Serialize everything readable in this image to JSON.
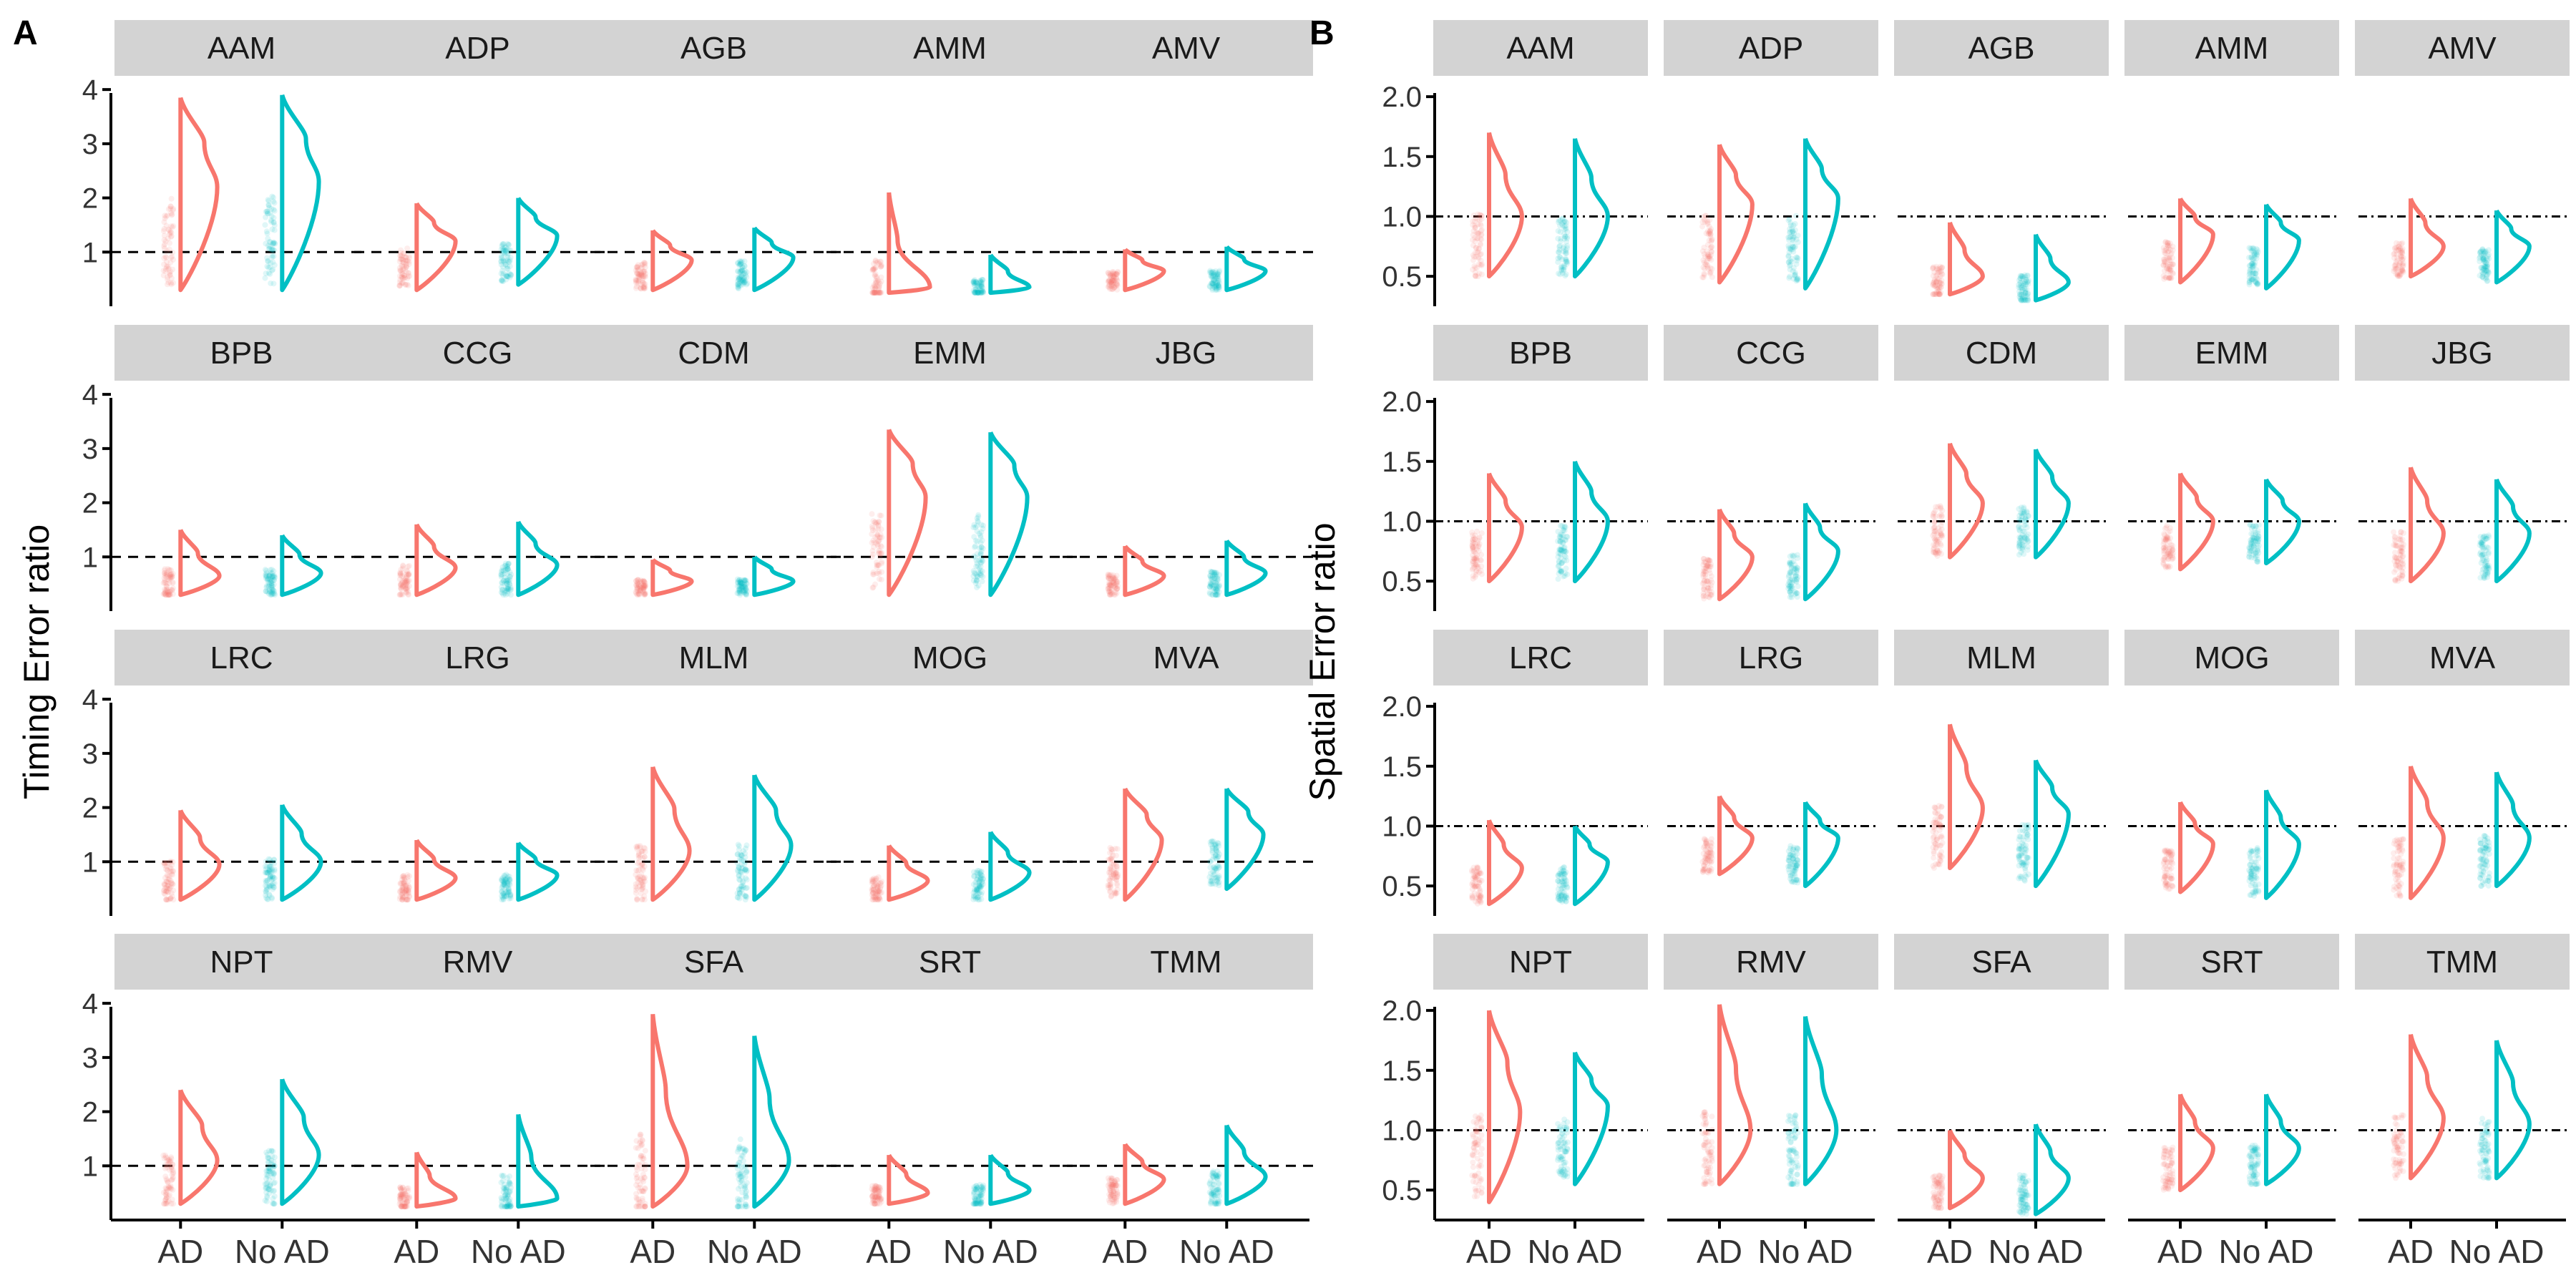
{
  "colors": {
    "ad": "#F8766D",
    "no_ad": "#00BFC4",
    "strip_bg": "#D3D3D3",
    "axis": "#000000"
  },
  "chart_data": [
    {
      "type": "violin",
      "panel_label": "A",
      "ylabel": "Timing Error ratio",
      "ylim": [
        0,
        4.2
      ],
      "yticks": [
        "1",
        "2",
        "3",
        "4"
      ],
      "ytick_values": [
        1,
        2,
        3,
        4
      ],
      "reference_line": 1,
      "x_categories": [
        "AD",
        "No AD"
      ],
      "facets": [
        {
          "name": "AAM",
          "series": [
            {
              "min": 0.3,
              "max": 3.85,
              "peak_y": 2.2,
              "peak_w": 0.85,
              "mid_w": 0.55
            },
            {
              "min": 0.3,
              "max": 3.9,
              "peak_y": 2.3,
              "peak_w": 0.85,
              "mid_w": 0.55
            }
          ]
        },
        {
          "name": "ADP",
          "series": [
            {
              "min": 0.3,
              "max": 1.9,
              "peak_y": 1.2,
              "peak_w": 0.9,
              "mid_w": 0.4
            },
            {
              "min": 0.4,
              "max": 2.0,
              "peak_y": 1.3,
              "peak_w": 0.9,
              "mid_w": 0.4
            }
          ]
        },
        {
          "name": "AGB",
          "series": [
            {
              "min": 0.3,
              "max": 1.4,
              "peak_y": 0.85,
              "peak_w": 0.9,
              "mid_w": 0.4
            },
            {
              "min": 0.3,
              "max": 1.45,
              "peak_y": 0.9,
              "peak_w": 0.9,
              "mid_w": 0.4
            }
          ]
        },
        {
          "name": "AMM",
          "series": [
            {
              "min": 0.25,
              "max": 2.1,
              "peak_y": 0.35,
              "peak_w": 0.95,
              "mid_w": 0.2
            },
            {
              "min": 0.25,
              "max": 0.95,
              "peak_y": 0.35,
              "peak_w": 0.9,
              "mid_w": 0.4
            }
          ]
        },
        {
          "name": "AMV",
          "series": [
            {
              "min": 0.3,
              "max": 1.05,
              "peak_y": 0.65,
              "peak_w": 0.9,
              "mid_w": 0.4
            },
            {
              "min": 0.3,
              "max": 1.1,
              "peak_y": 0.65,
              "peak_w": 0.9,
              "mid_w": 0.4
            }
          ]
        },
        {
          "name": "BPB",
          "series": [
            {
              "min": 0.3,
              "max": 1.5,
              "peak_y": 0.65,
              "peak_w": 0.9,
              "mid_w": 0.4
            },
            {
              "min": 0.3,
              "max": 1.4,
              "peak_y": 0.7,
              "peak_w": 0.9,
              "mid_w": 0.4
            }
          ]
        },
        {
          "name": "CCG",
          "series": [
            {
              "min": 0.3,
              "max": 1.6,
              "peak_y": 0.8,
              "peak_w": 0.9,
              "mid_w": 0.4
            },
            {
              "min": 0.3,
              "max": 1.65,
              "peak_y": 0.85,
              "peak_w": 0.9,
              "mid_w": 0.4
            }
          ]
        },
        {
          "name": "CDM",
          "series": [
            {
              "min": 0.3,
              "max": 0.95,
              "peak_y": 0.55,
              "peak_w": 0.9,
              "mid_w": 0.4
            },
            {
              "min": 0.3,
              "max": 1.0,
              "peak_y": 0.55,
              "peak_w": 0.9,
              "mid_w": 0.4
            }
          ]
        },
        {
          "name": "EMM",
          "series": [
            {
              "min": 0.3,
              "max": 3.35,
              "peak_y": 2.1,
              "peak_w": 0.85,
              "mid_w": 0.55
            },
            {
              "min": 0.3,
              "max": 3.3,
              "peak_y": 2.1,
              "peak_w": 0.85,
              "mid_w": 0.55
            }
          ]
        },
        {
          "name": "JBG",
          "series": [
            {
              "min": 0.3,
              "max": 1.2,
              "peak_y": 0.65,
              "peak_w": 0.9,
              "mid_w": 0.4
            },
            {
              "min": 0.3,
              "max": 1.3,
              "peak_y": 0.7,
              "peak_w": 0.9,
              "mid_w": 0.4
            }
          ]
        },
        {
          "name": "LRC",
          "series": [
            {
              "min": 0.3,
              "max": 1.95,
              "peak_y": 0.95,
              "peak_w": 0.9,
              "mid_w": 0.45
            },
            {
              "min": 0.3,
              "max": 2.05,
              "peak_y": 1.0,
              "peak_w": 0.9,
              "mid_w": 0.45
            }
          ]
        },
        {
          "name": "LRG",
          "series": [
            {
              "min": 0.3,
              "max": 1.4,
              "peak_y": 0.7,
              "peak_w": 0.9,
              "mid_w": 0.4
            },
            {
              "min": 0.3,
              "max": 1.35,
              "peak_y": 0.75,
              "peak_w": 0.9,
              "mid_w": 0.4
            }
          ]
        },
        {
          "name": "MLM",
          "series": [
            {
              "min": 0.3,
              "max": 2.75,
              "peak_y": 1.2,
              "peak_w": 0.85,
              "mid_w": 0.5
            },
            {
              "min": 0.3,
              "max": 2.6,
              "peak_y": 1.3,
              "peak_w": 0.85,
              "mid_w": 0.5
            }
          ]
        },
        {
          "name": "MOG",
          "series": [
            {
              "min": 0.3,
              "max": 1.3,
              "peak_y": 0.65,
              "peak_w": 0.9,
              "mid_w": 0.4
            },
            {
              "min": 0.3,
              "max": 1.55,
              "peak_y": 0.8,
              "peak_w": 0.9,
              "mid_w": 0.4
            }
          ]
        },
        {
          "name": "MVA",
          "series": [
            {
              "min": 0.3,
              "max": 2.35,
              "peak_y": 1.4,
              "peak_w": 0.85,
              "mid_w": 0.5
            },
            {
              "min": 0.5,
              "max": 2.35,
              "peak_y": 1.5,
              "peak_w": 0.85,
              "mid_w": 0.5
            }
          ]
        },
        {
          "name": "NPT",
          "series": [
            {
              "min": 0.3,
              "max": 2.4,
              "peak_y": 1.1,
              "peak_w": 0.85,
              "mid_w": 0.5
            },
            {
              "min": 0.3,
              "max": 2.6,
              "peak_y": 1.2,
              "peak_w": 0.85,
              "mid_w": 0.5
            }
          ]
        },
        {
          "name": "RMV",
          "series": [
            {
              "min": 0.25,
              "max": 1.25,
              "peak_y": 0.4,
              "peak_w": 0.9,
              "mid_w": 0.3
            },
            {
              "min": 0.25,
              "max": 1.95,
              "peak_y": 0.4,
              "peak_w": 0.9,
              "mid_w": 0.3
            }
          ]
        },
        {
          "name": "SFA",
          "series": [
            {
              "min": 0.25,
              "max": 3.8,
              "peak_y": 1.0,
              "peak_w": 0.8,
              "mid_w": 0.3
            },
            {
              "min": 0.25,
              "max": 3.4,
              "peak_y": 1.1,
              "peak_w": 0.8,
              "mid_w": 0.35
            }
          ]
        },
        {
          "name": "SRT",
          "series": [
            {
              "min": 0.3,
              "max": 1.2,
              "peak_y": 0.5,
              "peak_w": 0.9,
              "mid_w": 0.4
            },
            {
              "min": 0.3,
              "max": 1.2,
              "peak_y": 0.55,
              "peak_w": 0.9,
              "mid_w": 0.4
            }
          ]
        },
        {
          "name": "TMM",
          "series": [
            {
              "min": 0.3,
              "max": 1.4,
              "peak_y": 0.75,
              "peak_w": 0.9,
              "mid_w": 0.4
            },
            {
              "min": 0.3,
              "max": 1.75,
              "peak_y": 0.8,
              "peak_w": 0.9,
              "mid_w": 0.4
            }
          ]
        }
      ]
    },
    {
      "type": "violin",
      "panel_label": "B",
      "ylabel": "Spatial Error ratio",
      "ylim": [
        0.25,
        2.15
      ],
      "yticks": [
        "0.5",
        "1.0",
        "1.5",
        "2.0"
      ],
      "ytick_values": [
        0.5,
        1.0,
        1.5,
        2.0
      ],
      "reference_line": 1,
      "x_categories": [
        "AD",
        "No AD"
      ],
      "facets": [
        {
          "name": "AAM",
          "series": [
            {
              "min": 0.5,
              "max": 1.7,
              "peak_y": 1.0,
              "peak_w": 0.9,
              "mid_w": 0.45
            },
            {
              "min": 0.5,
              "max": 1.65,
              "peak_y": 1.0,
              "peak_w": 0.9,
              "mid_w": 0.45
            }
          ]
        },
        {
          "name": "ADP",
          "series": [
            {
              "min": 0.45,
              "max": 1.6,
              "peak_y": 1.1,
              "peak_w": 0.9,
              "mid_w": 0.45
            },
            {
              "min": 0.4,
              "max": 1.65,
              "peak_y": 1.15,
              "peak_w": 0.9,
              "mid_w": 0.45
            }
          ]
        },
        {
          "name": "AGB",
          "series": [
            {
              "min": 0.35,
              "max": 0.95,
              "peak_y": 0.5,
              "peak_w": 0.9,
              "mid_w": 0.4
            },
            {
              "min": 0.3,
              "max": 0.85,
              "peak_y": 0.45,
              "peak_w": 0.9,
              "mid_w": 0.4
            }
          ]
        },
        {
          "name": "AMM",
          "series": [
            {
              "min": 0.45,
              "max": 1.15,
              "peak_y": 0.85,
              "peak_w": 0.9,
              "mid_w": 0.4
            },
            {
              "min": 0.4,
              "max": 1.1,
              "peak_y": 0.8,
              "peak_w": 0.9,
              "mid_w": 0.4
            }
          ]
        },
        {
          "name": "AMV",
          "series": [
            {
              "min": 0.5,
              "max": 1.15,
              "peak_y": 0.75,
              "peak_w": 0.9,
              "mid_w": 0.4
            },
            {
              "min": 0.45,
              "max": 1.05,
              "peak_y": 0.75,
              "peak_w": 0.9,
              "mid_w": 0.4
            }
          ]
        },
        {
          "name": "BPB",
          "series": [
            {
              "min": 0.5,
              "max": 1.4,
              "peak_y": 0.95,
              "peak_w": 0.9,
              "mid_w": 0.45
            },
            {
              "min": 0.5,
              "max": 1.5,
              "peak_y": 1.0,
              "peak_w": 0.9,
              "mid_w": 0.45
            }
          ]
        },
        {
          "name": "CCG",
          "series": [
            {
              "min": 0.35,
              "max": 1.1,
              "peak_y": 0.7,
              "peak_w": 0.9,
              "mid_w": 0.4
            },
            {
              "min": 0.35,
              "max": 1.15,
              "peak_y": 0.75,
              "peak_w": 0.9,
              "mid_w": 0.4
            }
          ]
        },
        {
          "name": "CDM",
          "series": [
            {
              "min": 0.7,
              "max": 1.65,
              "peak_y": 1.15,
              "peak_w": 0.9,
              "mid_w": 0.45
            },
            {
              "min": 0.7,
              "max": 1.6,
              "peak_y": 1.15,
              "peak_w": 0.9,
              "mid_w": 0.45
            }
          ]
        },
        {
          "name": "EMM",
          "series": [
            {
              "min": 0.6,
              "max": 1.4,
              "peak_y": 1.0,
              "peak_w": 0.9,
              "mid_w": 0.45
            },
            {
              "min": 0.65,
              "max": 1.35,
              "peak_y": 1.0,
              "peak_w": 0.9,
              "mid_w": 0.45
            }
          ]
        },
        {
          "name": "JBG",
          "series": [
            {
              "min": 0.5,
              "max": 1.45,
              "peak_y": 0.9,
              "peak_w": 0.9,
              "mid_w": 0.45
            },
            {
              "min": 0.5,
              "max": 1.35,
              "peak_y": 0.9,
              "peak_w": 0.9,
              "mid_w": 0.45
            }
          ]
        },
        {
          "name": "LRC",
          "series": [
            {
              "min": 0.35,
              "max": 1.05,
              "peak_y": 0.65,
              "peak_w": 0.9,
              "mid_w": 0.4
            },
            {
              "min": 0.35,
              "max": 1.0,
              "peak_y": 0.7,
              "peak_w": 0.9,
              "mid_w": 0.4
            }
          ]
        },
        {
          "name": "LRG",
          "series": [
            {
              "min": 0.6,
              "max": 1.25,
              "peak_y": 0.9,
              "peak_w": 0.9,
              "mid_w": 0.4
            },
            {
              "min": 0.5,
              "max": 1.2,
              "peak_y": 0.9,
              "peak_w": 0.9,
              "mid_w": 0.4
            }
          ]
        },
        {
          "name": "MLM",
          "series": [
            {
              "min": 0.65,
              "max": 1.85,
              "peak_y": 1.15,
              "peak_w": 0.9,
              "mid_w": 0.45
            },
            {
              "min": 0.5,
              "max": 1.55,
              "peak_y": 1.1,
              "peak_w": 0.9,
              "mid_w": 0.45
            }
          ]
        },
        {
          "name": "MOG",
          "series": [
            {
              "min": 0.45,
              "max": 1.2,
              "peak_y": 0.85,
              "peak_w": 0.9,
              "mid_w": 0.4
            },
            {
              "min": 0.4,
              "max": 1.3,
              "peak_y": 0.85,
              "peak_w": 0.9,
              "mid_w": 0.4
            }
          ]
        },
        {
          "name": "MVA",
          "series": [
            {
              "min": 0.4,
              "max": 1.5,
              "peak_y": 0.9,
              "peak_w": 0.9,
              "mid_w": 0.45
            },
            {
              "min": 0.5,
              "max": 1.45,
              "peak_y": 0.9,
              "peak_w": 0.9,
              "mid_w": 0.45
            }
          ]
        },
        {
          "name": "NPT",
          "series": [
            {
              "min": 0.4,
              "max": 2.0,
              "peak_y": 1.15,
              "peak_w": 0.85,
              "mid_w": 0.5
            },
            {
              "min": 0.55,
              "max": 1.65,
              "peak_y": 1.2,
              "peak_w": 0.9,
              "mid_w": 0.45
            }
          ]
        },
        {
          "name": "RMV",
          "series": [
            {
              "min": 0.55,
              "max": 2.05,
              "peak_y": 1.0,
              "peak_w": 0.85,
              "mid_w": 0.45
            },
            {
              "min": 0.55,
              "max": 1.95,
              "peak_y": 1.0,
              "peak_w": 0.85,
              "mid_w": 0.45
            }
          ]
        },
        {
          "name": "SFA",
          "series": [
            {
              "min": 0.35,
              "max": 1.0,
              "peak_y": 0.6,
              "peak_w": 0.9,
              "mid_w": 0.4
            },
            {
              "min": 0.3,
              "max": 1.05,
              "peak_y": 0.6,
              "peak_w": 0.9,
              "mid_w": 0.4
            }
          ]
        },
        {
          "name": "SRT",
          "series": [
            {
              "min": 0.5,
              "max": 1.3,
              "peak_y": 0.85,
              "peak_w": 0.9,
              "mid_w": 0.4
            },
            {
              "min": 0.55,
              "max": 1.3,
              "peak_y": 0.85,
              "peak_w": 0.9,
              "mid_w": 0.4
            }
          ]
        },
        {
          "name": "TMM",
          "series": [
            {
              "min": 0.6,
              "max": 1.8,
              "peak_y": 1.1,
              "peak_w": 0.9,
              "mid_w": 0.45
            },
            {
              "min": 0.6,
              "max": 1.75,
              "peak_y": 1.05,
              "peak_w": 0.9,
              "mid_w": 0.45
            }
          ]
        }
      ]
    }
  ]
}
